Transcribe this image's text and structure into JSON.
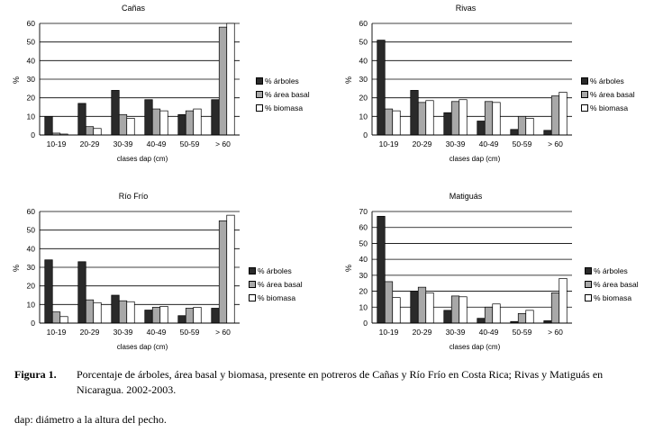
{
  "colors": {
    "arboles": "#2a2a2a",
    "area_basal": "#a8a8a8",
    "biomasa": "#ffffff"
  },
  "chart_data": [
    {
      "type": "bar",
      "title": "Cañas",
      "ylabel": "%",
      "xlabel": "clases dap (cm)",
      "categories": [
        "10-19",
        "20-29",
        "30-39",
        "40-49",
        "50-59",
        "> 60"
      ],
      "ylim": [
        0,
        60
      ],
      "yticks": [
        0,
        10,
        20,
        30,
        40,
        50,
        60
      ],
      "legend_position": "right",
      "grid": true,
      "series": [
        {
          "name": "% árboles",
          "values": [
            10,
            17,
            24,
            19,
            11,
            19
          ]
        },
        {
          "name": "% área basal",
          "values": [
            1,
            4.5,
            11,
            14,
            13,
            58
          ]
        },
        {
          "name": "% biomasa",
          "values": [
            0.5,
            3.5,
            9,
            13,
            14,
            60
          ]
        }
      ]
    },
    {
      "type": "bar",
      "title": "Rivas",
      "ylabel": "%",
      "xlabel": "clases dap (cm)",
      "categories": [
        "10-19",
        "20-29",
        "30-39",
        "40-49",
        "50-59",
        "> 60"
      ],
      "ylim": [
        0,
        60
      ],
      "yticks": [
        0,
        10,
        20,
        30,
        40,
        50,
        60
      ],
      "legend_position": "right",
      "grid": true,
      "series": [
        {
          "name": "% árboles",
          "values": [
            51,
            24,
            12,
            7.5,
            3,
            2.5
          ]
        },
        {
          "name": "% área basal",
          "values": [
            14,
            17.5,
            18,
            18,
            10,
            21
          ]
        },
        {
          "name": "% biomasa",
          "values": [
            13,
            18.5,
            19,
            17.5,
            9,
            23
          ]
        }
      ]
    },
    {
      "type": "bar",
      "title": "Río Frío",
      "ylabel": "%",
      "xlabel": "clases dap (cm)",
      "categories": [
        "10-19",
        "20-29",
        "30-39",
        "40-49",
        "50-59",
        "> 60"
      ],
      "ylim": [
        0,
        60
      ],
      "yticks": [
        0,
        10,
        20,
        30,
        40,
        50,
        60
      ],
      "legend_position": "right",
      "grid": true,
      "series": [
        {
          "name": "% árboles",
          "values": [
            34,
            33,
            15,
            7,
            4,
            8
          ]
        },
        {
          "name": "% área basal",
          "values": [
            6,
            12.5,
            12,
            8.5,
            8,
            55
          ]
        },
        {
          "name": "% biomasa",
          "values": [
            3.5,
            11,
            11.5,
            9,
            8.5,
            58
          ]
        }
      ]
    },
    {
      "type": "bar",
      "title": "Matiguás",
      "ylabel": "%",
      "xlabel": "clases dap (cm)",
      "categories": [
        "10-19",
        "20-29",
        "30-39",
        "40-49",
        "50-59",
        "> 60"
      ],
      "ylim": [
        0,
        70
      ],
      "yticks": [
        0,
        10,
        20,
        30,
        40,
        50,
        60,
        70
      ],
      "legend_position": "right",
      "grid": true,
      "series": [
        {
          "name": "% árboles",
          "values": [
            67,
            20,
            8,
            3,
            1,
            1.5
          ]
        },
        {
          "name": "% área basal",
          "values": [
            26,
            22.5,
            17,
            10,
            6,
            19
          ]
        },
        {
          "name": "% biomasa",
          "values": [
            16,
            19,
            16.5,
            12,
            8,
            28
          ]
        }
      ]
    }
  ],
  "caption": {
    "label": "Figura 1.",
    "text": "Porcentaje de árboles, área basal y biomasa, presente en potreros de Cañas y Río Frío en Costa Rica; Rivas y Matiguás en Nicaragua. 2002-2003."
  },
  "footnote": "dap: diámetro a la altura del pecho."
}
